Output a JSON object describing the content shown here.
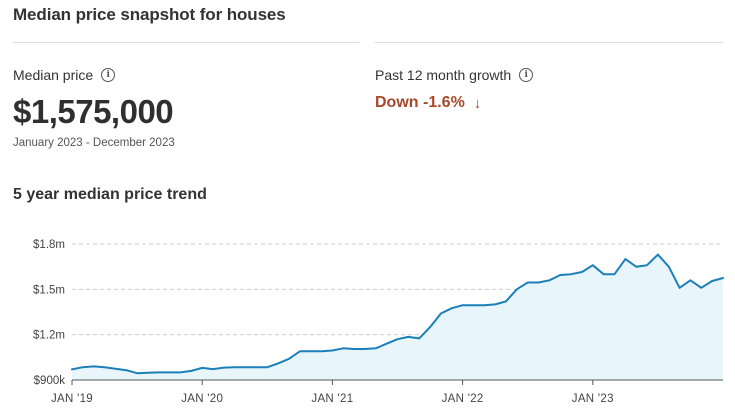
{
  "header": {
    "title": "Median price snapshot for houses"
  },
  "median": {
    "label": "Median price",
    "info_icon": "info-icon",
    "value": "$1,575,000",
    "period": "January 2023 - December 2023"
  },
  "growth": {
    "label": "Past 12 month growth",
    "info_icon": "info-icon",
    "value": "Down -1.6%",
    "arrow": "↓",
    "color": "#a8482a"
  },
  "trend": {
    "title": "5 year median price trend"
  },
  "chart_data": {
    "type": "area",
    "title": "5 year median price trend",
    "xlabel": "",
    "ylabel": "",
    "x_ticks": [
      "JAN '19",
      "JAN '20",
      "JAN '21",
      "JAN '22",
      "JAN '23"
    ],
    "y_ticks": [
      "$900k",
      "$1.2m",
      "$1.5m",
      "$1.8m"
    ],
    "y_tick_values": [
      0.9,
      1.2,
      1.5,
      1.8
    ],
    "ylim": [
      0.9,
      1.8
    ],
    "x_start": "2019-01",
    "grid": "horizontal dashed",
    "line_color": "#1b7fb9",
    "fill_color": "#e8f6fc",
    "series": [
      {
        "points": [
          [
            "2019-01",
            0.97
          ],
          [
            "2019-02",
            0.985
          ],
          [
            "2019-03",
            0.99
          ],
          [
            "2019-04",
            0.985
          ],
          [
            "2019-05",
            0.975
          ],
          [
            "2019-06",
            0.965
          ],
          [
            "2019-07",
            0.945
          ],
          [
            "2019-08",
            0.948
          ],
          [
            "2019-09",
            0.95
          ],
          [
            "2019-10",
            0.95
          ],
          [
            "2019-11",
            0.95
          ],
          [
            "2019-12",
            0.96
          ],
          [
            "2020-01",
            0.98
          ],
          [
            "2020-02",
            0.972
          ],
          [
            "2020-03",
            0.982
          ],
          [
            "2020-04",
            0.985
          ],
          [
            "2020-05",
            0.984
          ],
          [
            "2020-06",
            0.985
          ],
          [
            "2020-07",
            0.985
          ],
          [
            "2020-08",
            1.01
          ],
          [
            "2020-09",
            1.04
          ],
          [
            "2020-10",
            1.09
          ],
          [
            "2020-11",
            1.09
          ],
          [
            "2020-12",
            1.09
          ],
          [
            "2021-01",
            1.095
          ],
          [
            "2021-02",
            1.11
          ],
          [
            "2021-03",
            1.105
          ],
          [
            "2021-04",
            1.105
          ],
          [
            "2021-05",
            1.11
          ],
          [
            "2021-06",
            1.14
          ],
          [
            "2021-07",
            1.17
          ],
          [
            "2021-08",
            1.185
          ],
          [
            "2021-09",
            1.175
          ],
          [
            "2021-10",
            1.25
          ],
          [
            "2021-11",
            1.34
          ],
          [
            "2021-12",
            1.375
          ],
          [
            "2022-01",
            1.395
          ],
          [
            "2022-02",
            1.395
          ],
          [
            "2022-03",
            1.395
          ],
          [
            "2022-04",
            1.4
          ],
          [
            "2022-05",
            1.42
          ],
          [
            "2022-06",
            1.5
          ],
          [
            "2022-07",
            1.545
          ],
          [
            "2022-08",
            1.545
          ],
          [
            "2022-09",
            1.56
          ],
          [
            "2022-10",
            1.595
          ],
          [
            "2022-11",
            1.6
          ],
          [
            "2022-12",
            1.615
          ],
          [
            "2023-01",
            1.66
          ],
          [
            "2023-02",
            1.6
          ],
          [
            "2023-03",
            1.6
          ],
          [
            "2023-04",
            1.7
          ],
          [
            "2023-05",
            1.65
          ],
          [
            "2023-06",
            1.66
          ],
          [
            "2023-07",
            1.73
          ],
          [
            "2023-08",
            1.65
          ],
          [
            "2023-09",
            1.51
          ],
          [
            "2023-10",
            1.56
          ],
          [
            "2023-11",
            1.51
          ],
          [
            "2023-12",
            1.555
          ],
          [
            "2024-01",
            1.575
          ]
        ]
      }
    ]
  }
}
